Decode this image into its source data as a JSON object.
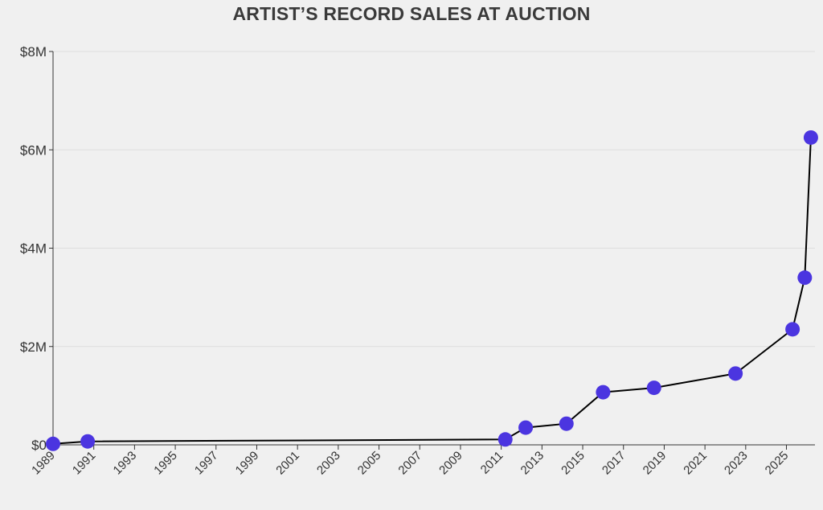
{
  "chart_data": {
    "type": "line",
    "title": "ARTIST’S RECORD SALES AT AUCTION",
    "xlabel": "",
    "ylabel": "",
    "xlim": [
      1989,
      2026.4
    ],
    "ylim": [
      0,
      8000000
    ],
    "y_ticks": [
      0,
      2000000,
      4000000,
      6000000,
      8000000
    ],
    "y_tick_labels": [
      "$0",
      "$2M",
      "$4M",
      "$6M",
      "$8M"
    ],
    "x_ticks": [
      1989,
      1991,
      1993,
      1995,
      1997,
      1999,
      2001,
      2003,
      2005,
      2007,
      2009,
      2011,
      2013,
      2015,
      2017,
      2019,
      2021,
      2023,
      2025
    ],
    "x_tick_labels": [
      "1989",
      "1991",
      "1993",
      "1995",
      "1997",
      "1999",
      "2001",
      "2003",
      "2005",
      "2007",
      "2009",
      "2011",
      "2013",
      "2015",
      "2017",
      "2019",
      "2021",
      "2023",
      "2025"
    ],
    "grid": true,
    "series": [
      {
        "x": [
          1989.0,
          1990.7,
          2011.2,
          2012.2,
          2014.2,
          2016.0,
          2018.5,
          2022.5,
          2025.3,
          2025.9,
          2026.2
        ],
        "y": [
          20000,
          70000,
          110000,
          350000,
          430000,
          1070000,
          1160000,
          1450000,
          2350000,
          3400000,
          6250000
        ],
        "color": "#4b35e0",
        "line_color": "#000000"
      }
    ]
  }
}
